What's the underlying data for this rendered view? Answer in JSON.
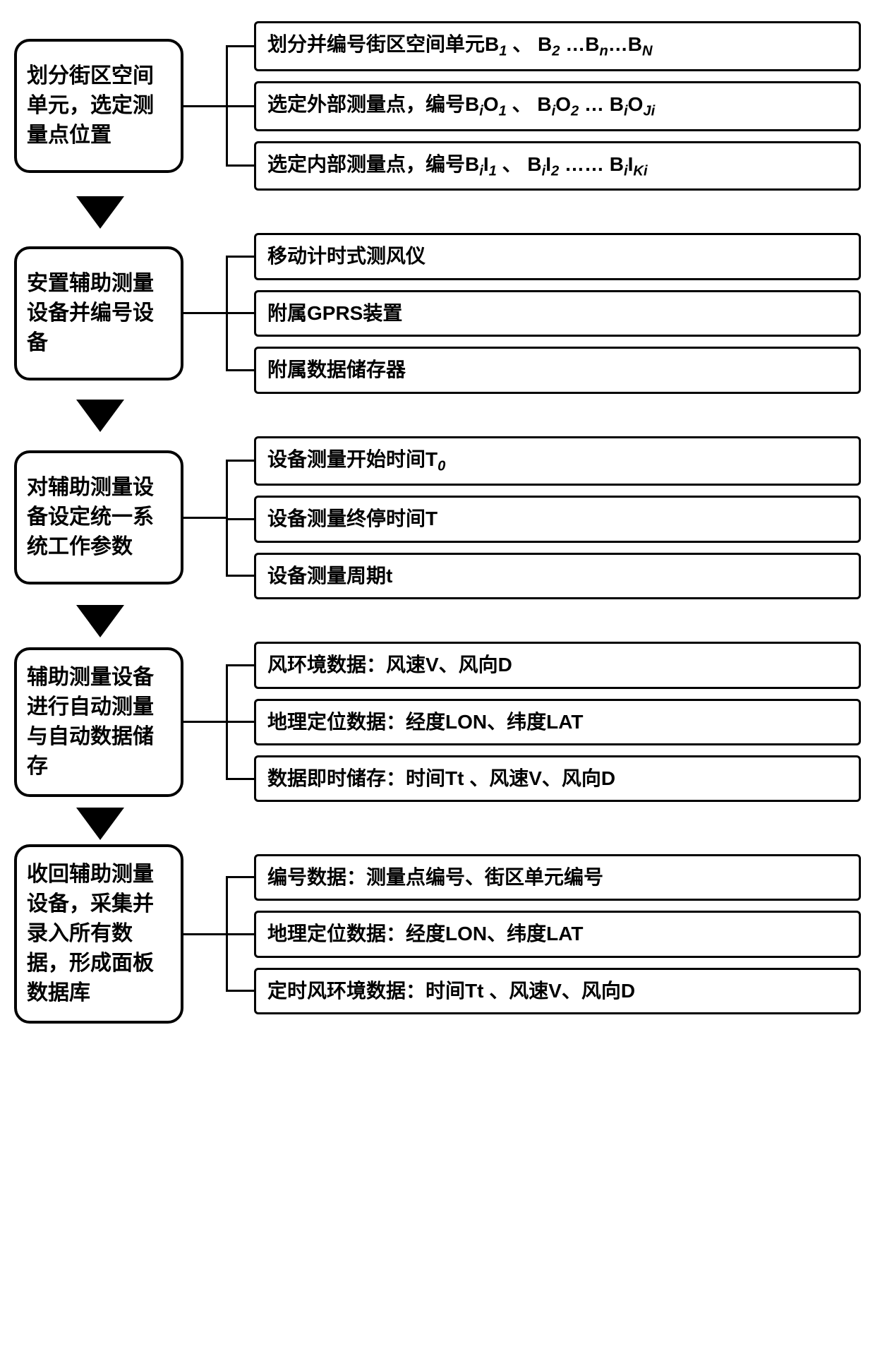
{
  "steps": [
    {
      "left": "划分街区空间单元，选定测量点位置",
      "right": [
        "划分并编号街区空间单元B<sub>1</sub> 、 B<sub>2</sub> …B<sub>n</sub>…B<sub>N</sub>",
        "选定外部测量点，编号B<sub><span class='italic'>i</span></sub>O<sub>1</sub> 、 B<sub><span class='italic'>i</span></sub>O<sub>2</sub> … B<sub><span class='italic'>i</span></sub>O<sub><span class='italic'>Ji</span></sub>",
        "选定内部测量点，编号B<sub><span class='italic'>i</span></sub>I<sub>1</sub> 、 B<sub><span class='italic'>i</span></sub>I<sub>2</sub> …… B<sub><span class='italic'>i</span></sub>I<sub><span class='italic'>Ki</span></sub>"
      ]
    },
    {
      "left": "安置辅助测量设备并编号设备",
      "right": [
        "移动计时式测风仪",
        "附属GPRS装置",
        "附属数据储存器"
      ]
    },
    {
      "left": "对辅助测量设备设定统一系统工作参数",
      "right": [
        "设备测量开始时间T<sub>0</sub>",
        "设备测量终停时间T",
        "设备测量周期t"
      ]
    },
    {
      "left": "辅助测量设备进行自动测量与自动数据储存",
      "right": [
        "风环境数据：风速V、风向D",
        "地理定位数据：经度LON、纬度LAT",
        "数据即时储存：时间Tt 、风速V、风向D"
      ]
    },
    {
      "left": "收回辅助测量设备，采集并录入所有数据，形成面板数据库",
      "right": [
        "编号数据：测量点编号、街区单元编号",
        "地理定位数据：经度LON、纬度LAT",
        "定时风环境数据：时间Tt 、风速V、风向D"
      ]
    }
  ],
  "colors": {
    "border": "#000000",
    "text": "#000000",
    "background": "#ffffff"
  },
  "layout": {
    "left_box_width": 240,
    "left_box_radius": 22,
    "right_box_radius": 6,
    "connector_main": 60,
    "connector_branch": 40
  }
}
